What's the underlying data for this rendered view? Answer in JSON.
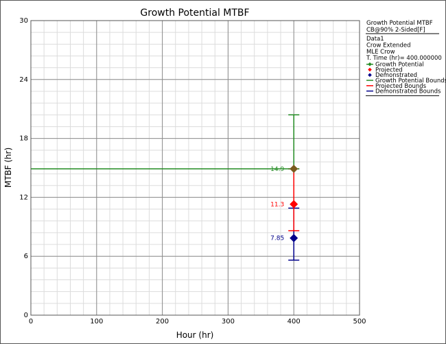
{
  "chart_data": {
    "type": "scatter",
    "title": "Growth Potential MTBF",
    "xlabel": "Hour (hr)",
    "ylabel": "MTBF (hr)",
    "xlim": [
      0,
      500
    ],
    "ylim": [
      0,
      30
    ],
    "xticks": [
      0,
      100,
      200,
      300,
      400,
      500
    ],
    "yticks": [
      0,
      6,
      12,
      18,
      24,
      30
    ],
    "grid": true,
    "legend_position": "right",
    "legend": {
      "header": [
        "Growth Potential MTBF",
        "CB@90% 2-Sided[F]"
      ],
      "info": [
        "Data1",
        "Crow Extended",
        "MLE Crow",
        "T. Time (hr)= 400.000000"
      ],
      "entries": [
        {
          "label": "Growth Potential",
          "color": "#228B22",
          "kind": "line-marker"
        },
        {
          "label": "Projected",
          "color": "#ff0000",
          "kind": "marker"
        },
        {
          "label": "Demonstrated",
          "color": "#00008b",
          "kind": "marker"
        },
        {
          "label": "Growth Potential Bounds",
          "color": "#228B22",
          "kind": "line"
        },
        {
          "label": "Projected Bounds",
          "color": "#ff0000",
          "kind": "line"
        },
        {
          "label": "Demonstrated Bounds",
          "color": "#00008b",
          "kind": "line"
        }
      ]
    },
    "series": [
      {
        "name": "Growth Potential",
        "color": "#228B22",
        "x": 400,
        "y": 14.9,
        "label": "14.9",
        "bounds": [
          14.9,
          20.4
        ],
        "line_from_x": 0
      },
      {
        "name": "Projected",
        "color": "#ff0000",
        "x": 400,
        "y": 11.3,
        "label": "11.3",
        "bounds": [
          8.6,
          14.9
        ]
      },
      {
        "name": "Demonstrated",
        "color": "#00008b",
        "x": 400,
        "y": 7.85,
        "label": "7.85",
        "bounds": [
          5.6,
          10.9
        ]
      }
    ]
  }
}
